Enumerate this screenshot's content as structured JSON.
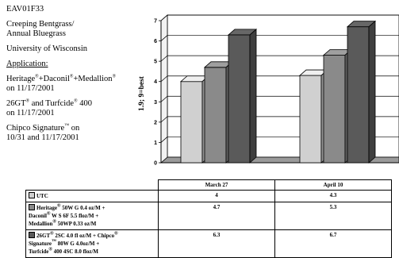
{
  "info": {
    "id": "EAV01F33",
    "crop_line1": "Creeping Bentgrass/",
    "crop_line2": "Annual Bluegrass",
    "institution": "University of Wisconsin",
    "application_label": "Application:",
    "app1": {
      "line1_a": "Heritage",
      "line1_b": "+Daconil",
      "line1_c": "+Medallion",
      "line2": "on 11/17/2001"
    },
    "app2": {
      "line1_a": "26GT",
      "line1_b": " and Turfcide",
      "line1_c": " 400",
      "line2": "on 11/17/2001"
    },
    "app3": {
      "line1_a": "Chipco Signature",
      "line1_b": " on",
      "line2": "10/31 and 11/17/2001"
    },
    "reg": "®",
    "tm": "™"
  },
  "chart_data": {
    "type": "bar",
    "ylabel": "1.9; 9=best",
    "ylim": [
      0,
      7
    ],
    "yticks": [
      "0",
      "1",
      "2",
      "3",
      "4",
      "5",
      "6",
      "7"
    ],
    "grid": true,
    "categories": [
      "March 27",
      "April 10"
    ],
    "series": [
      {
        "name": "UTC",
        "values": [
          4,
          4.3
        ],
        "color": "#d0d0d0"
      },
      {
        "name": "Heritage® 50W G 0.4 oz/M + Daconil® W S 6F 5.5 floz/M + Medallion® 50WP 0.33 oz/M",
        "values": [
          4.7,
          5.3
        ],
        "color": "#8a8a8a"
      },
      {
        "name": "26GT® 2SC 4.0 fl oz/M + Chipco® Signature™ 80W G 4.0oz/M + Turfcide® 400 4SC 8.0 floz/M",
        "values": [
          6.3,
          6.7
        ],
        "color": "#5a5a5a"
      }
    ]
  },
  "legend": {
    "row1": {
      "name": "UTC",
      "v1": "4",
      "v2": "4.3"
    },
    "row2": {
      "l1": "Heritage",
      "l1b": " 50W G 0.4 oz/M +",
      "l2": "Daconil",
      "l2b": " W S 6F 5.5 floz/M +",
      "l3": "Medallion",
      "l3b": " 50WP 0.33 oz/M",
      "v1": "4.7",
      "v2": "5.3"
    },
    "row3": {
      "l1": "26GT",
      "l1b": " 2SC 4.0 fl oz/M + Chipco",
      "l2": "Signature",
      "l2b": " 80W G 4.0oz/M +",
      "l3": "Turfcide",
      "l3b": " 400 4SC 8.0 floz/M",
      "v1": "6.3",
      "v2": "6.7"
    }
  }
}
